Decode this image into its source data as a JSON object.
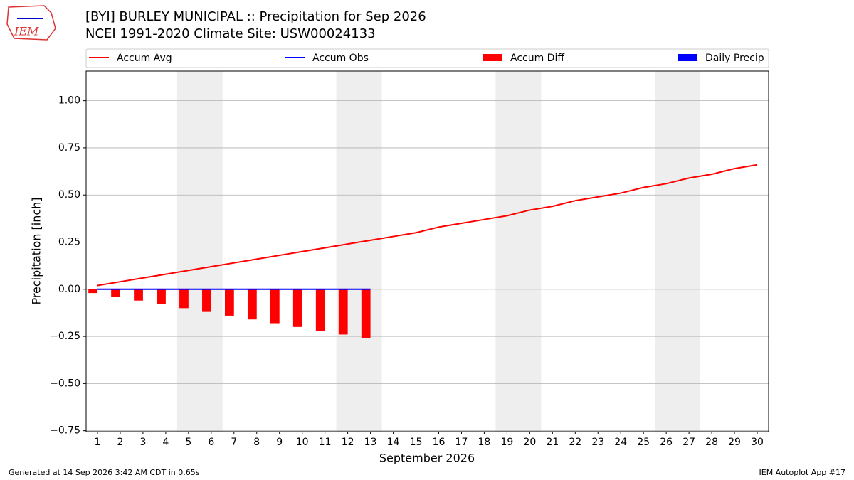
{
  "logo_text": "IEM",
  "footer": {
    "left": "Generated at 14 Sep 2026 3:42 AM CDT in 0.65s",
    "right": "IEM Autoplot App #17"
  },
  "chart_data": {
    "type": "line",
    "title": "[BYI] BURLEY MUNICIPAL :: Precipitation for Sep 2026",
    "subtitle": "NCEI 1991-2020 Climate Site: USW00024133",
    "x_label": "September 2026",
    "y_label": "Precipitation [inch]",
    "x": [
      1,
      2,
      3,
      4,
      5,
      6,
      7,
      8,
      9,
      10,
      11,
      12,
      13,
      14,
      15,
      16,
      17,
      18,
      19,
      20,
      21,
      22,
      23,
      24,
      25,
      26,
      27,
      28,
      29,
      30
    ],
    "series": [
      {
        "name": "Accum Avg",
        "type": "line",
        "color": "#ff0000",
        "values": [
          0.02,
          0.04,
          0.06,
          0.08,
          0.1,
          0.12,
          0.14,
          0.16,
          0.18,
          0.2,
          0.22,
          0.24,
          0.26,
          0.28,
          0.3,
          0.33,
          0.35,
          0.37,
          0.39,
          0.42,
          0.44,
          0.47,
          0.49,
          0.51,
          0.54,
          0.56,
          0.59,
          0.61,
          0.64,
          0.66
        ]
      },
      {
        "name": "Accum Obs",
        "type": "line",
        "color": "#0000ff",
        "values": [
          0,
          0,
          0,
          0,
          0,
          0,
          0,
          0,
          0,
          0,
          0,
          0,
          0,
          null,
          null,
          null,
          null,
          null,
          null,
          null,
          null,
          null,
          null,
          null,
          null,
          null,
          null,
          null,
          null,
          null
        ]
      },
      {
        "name": "Accum Diff",
        "type": "bar",
        "color": "#ff0000",
        "values": [
          -0.02,
          -0.04,
          -0.06,
          -0.08,
          -0.1,
          -0.12,
          -0.14,
          -0.16,
          -0.18,
          -0.2,
          -0.22,
          -0.24,
          -0.26,
          null,
          null,
          null,
          null,
          null,
          null,
          null,
          null,
          null,
          null,
          null,
          null,
          null,
          null,
          null,
          null,
          null
        ]
      },
      {
        "name": "Daily Precip",
        "type": "bar",
        "color": "#0000ff",
        "values": [
          0,
          0,
          0,
          0,
          0,
          0,
          0,
          0,
          0,
          0,
          0,
          0,
          0,
          null,
          null,
          null,
          null,
          null,
          null,
          null,
          null,
          null,
          null,
          null,
          null,
          null,
          null,
          null,
          null,
          null
        ]
      }
    ],
    "weekend_bands": [
      [
        4.5,
        6.5
      ],
      [
        11.5,
        13.5
      ],
      [
        18.5,
        20.5
      ],
      [
        25.5,
        27.5
      ]
    ],
    "band_color": "#eeeeee",
    "xlim": [
      0.5,
      30.5
    ],
    "xticks": [
      1,
      2,
      3,
      4,
      5,
      6,
      7,
      8,
      9,
      10,
      11,
      12,
      13,
      14,
      15,
      16,
      17,
      18,
      19,
      20,
      21,
      22,
      23,
      24,
      25,
      26,
      27,
      28,
      29,
      30
    ],
    "ylim": [
      -0.755,
      1.157
    ],
    "yticks": [
      {
        "value": -0.75,
        "label": "−0.75"
      },
      {
        "value": -0.5,
        "label": "−0.50"
      },
      {
        "value": -0.25,
        "label": "−0.25"
      },
      {
        "value": 0,
        "label": "0.00"
      },
      {
        "value": 0.25,
        "label": "0.25"
      },
      {
        "value": 0.5,
        "label": "0.50"
      },
      {
        "value": 0.75,
        "label": "0.75"
      },
      {
        "value": 1,
        "label": "1.00"
      }
    ],
    "grid": true
  }
}
